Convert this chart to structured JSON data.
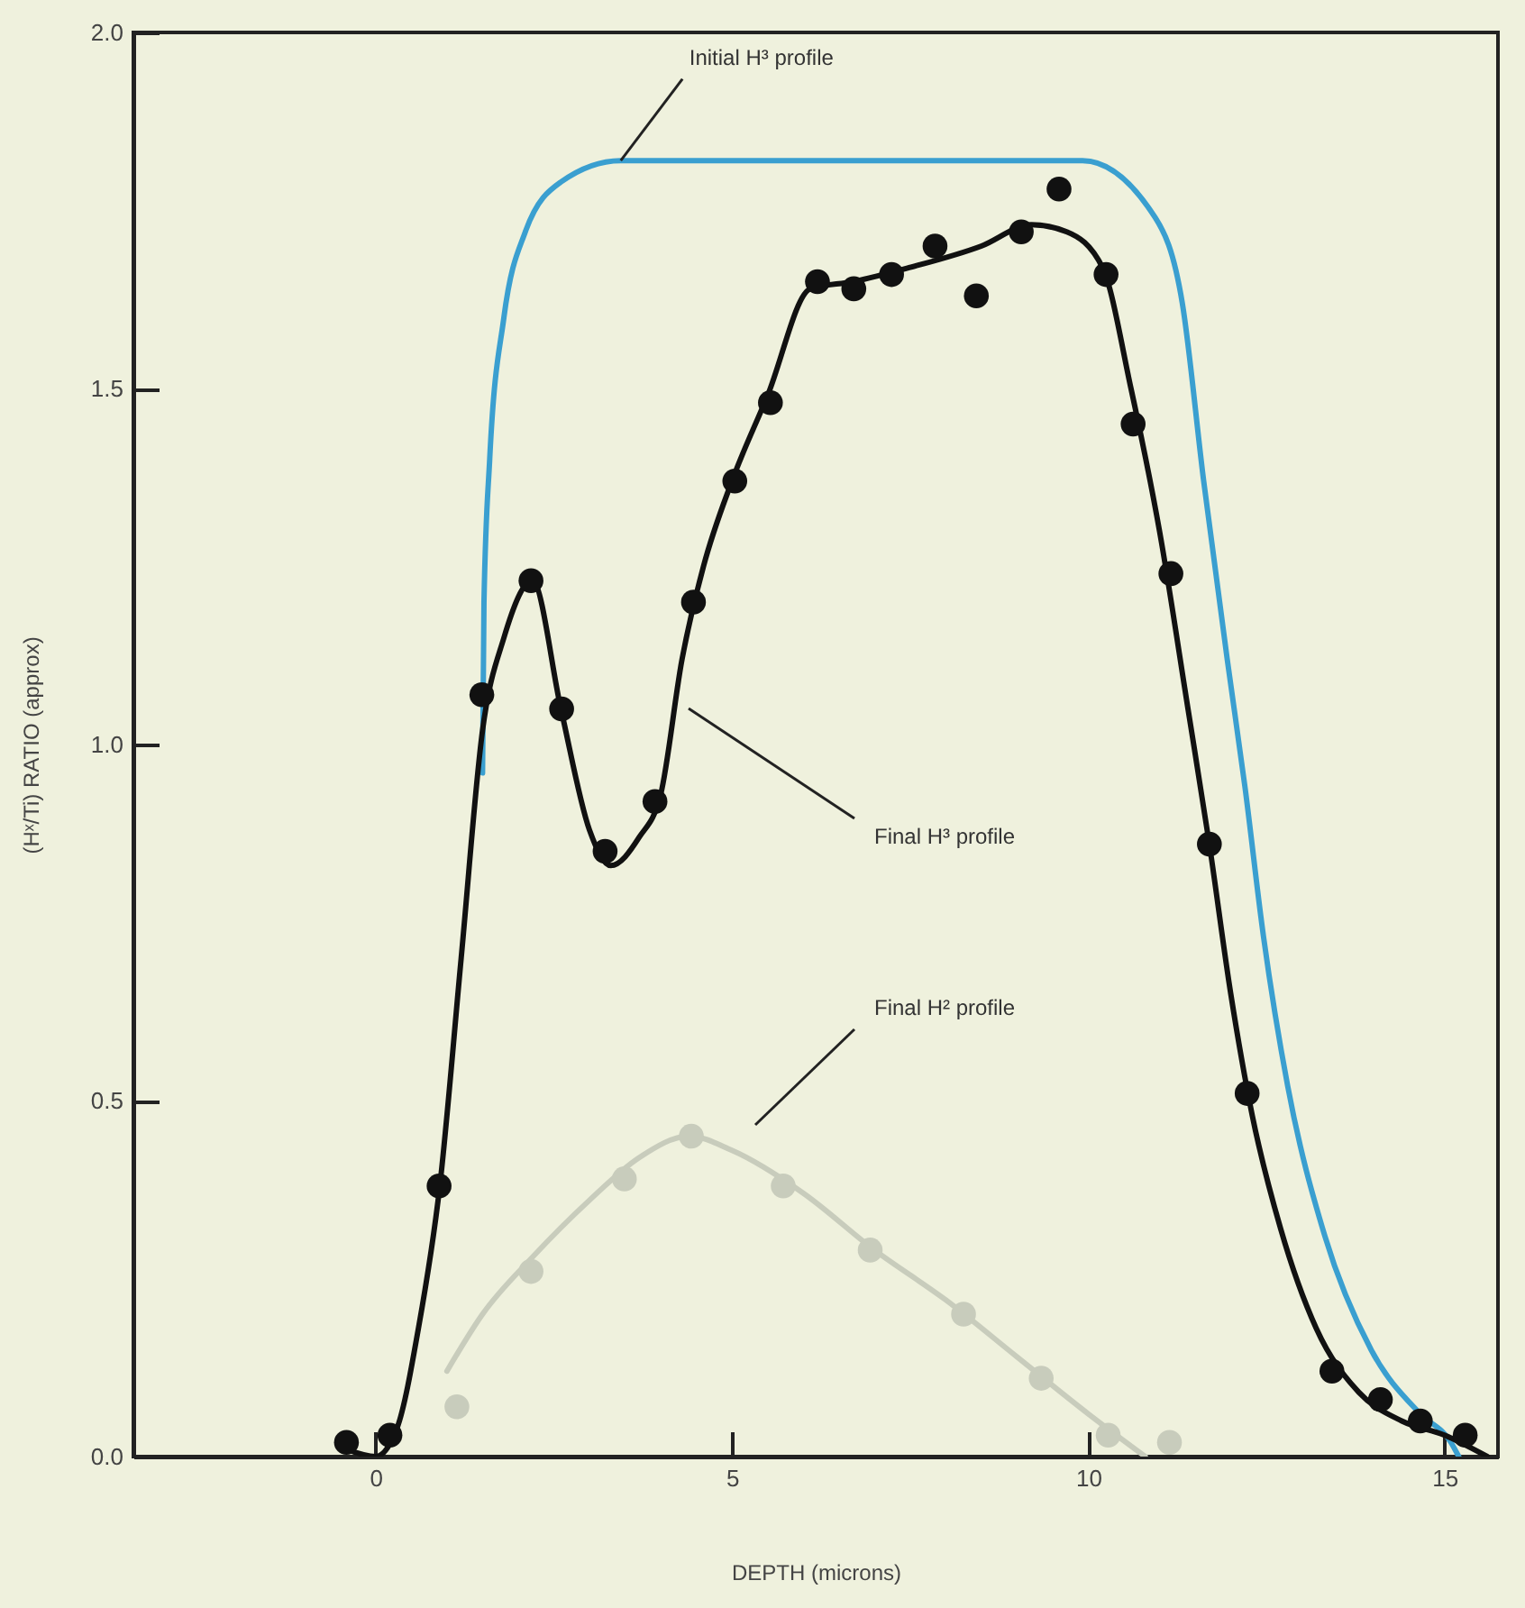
{
  "chart_data": {
    "type": "line",
    "xlabel": "DEPTH (microns)",
    "ylabel": "(Hˣ/Ti) RATIO (approx)",
    "xlim": [
      -3.4,
      15.75
    ],
    "ylim": [
      0,
      2.0
    ],
    "xticks": [
      0,
      5,
      10,
      15
    ],
    "yticks": [
      {
        "value": 0,
        "label": "0.0"
      },
      {
        "value": 0.5,
        "label": "0.5"
      },
      {
        "value": 1,
        "label": "1.0"
      },
      {
        "value": 1.5,
        "label": "1.5"
      },
      {
        "value": 2,
        "label": "2.0"
      }
    ],
    "grid": false,
    "line_style": "solid",
    "annotations": [
      {
        "text": "Initial H³ profile",
        "x": 3.44,
        "y": 1.82
      },
      "Final H³ profile",
      "Final H² profile"
    ],
    "series": [
      {
        "color": "#3a9fd0",
        "x": [
          1.5,
          1.52,
          1.6,
          1.8,
          2.1,
          2.6,
          3.44,
          9.92,
          10.94,
          11.32,
          11.62,
          11.95,
          12.2,
          12.46,
          12.8,
          13.32,
          13.97,
          14.66,
          15.09,
          15.2
        ],
        "values": [
          0.96,
          1.2,
          1.4,
          1.6,
          1.72,
          1.79,
          1.82,
          1.82,
          1.74,
          1.62,
          1.37,
          1.12,
          0.94,
          0.73,
          0.52,
          0.31,
          0.15,
          0.06,
          0.02,
          0.0
        ]
      },
      {
        "color": "#111111",
        "x": [
          -0.4,
          0,
          0.3,
          0.6,
          0.9,
          1.2,
          1.5,
          1.8,
          2.2,
          2.6,
          3.0,
          3.3,
          3.7,
          4.0,
          4.3,
          4.6,
          5.0,
          5.5,
          6.1,
          6.7,
          7.5,
          8.5,
          9.2,
          9.7,
          10.2,
          10.6,
          11.0,
          11.4,
          11.7,
          12.0,
          12.3,
          12.7,
          13.2,
          13.8,
          14.4,
          15.0,
          15.6
        ],
        "values": [
          0.01,
          0,
          0.04,
          0.18,
          0.38,
          0.7,
          1.02,
          1.15,
          1.23,
          1.05,
          0.88,
          0.83,
          0.87,
          0.93,
          1.12,
          1.25,
          1.37,
          1.49,
          1.64,
          1.65,
          1.67,
          1.7,
          1.73,
          1.72,
          1.67,
          1.5,
          1.3,
          1.05,
          0.86,
          0.65,
          0.48,
          0.32,
          0.18,
          0.09,
          0.05,
          0.03,
          0.0
        ]
      },
      {
        "type": "scatter",
        "marker": "circle",
        "color": "#111111",
        "x": [
          -0.41,
          0.2,
          0.89,
          1.49,
          2.18,
          2.61,
          3.22,
          3.92,
          4.46,
          5.04,
          5.54,
          6.2,
          6.71,
          7.24,
          7.85,
          8.43,
          9.06,
          9.59,
          10.25,
          10.63,
          11.16,
          11.7,
          12.23,
          13.42,
          14.1,
          14.66,
          15.29
        ],
        "values": [
          0.02,
          0.03,
          0.38,
          1.07,
          1.23,
          1.05,
          0.85,
          0.92,
          1.2,
          1.37,
          1.48,
          1.65,
          1.64,
          1.66,
          1.7,
          1.63,
          1.72,
          1.78,
          1.66,
          1.45,
          1.24,
          0.86,
          0.51,
          0.12,
          0.08,
          0.05,
          0.03
        ]
      },
      {
        "color": "#c8ccbc",
        "x": [
          1.0,
          1.5,
          2.2,
          3.0,
          3.7,
          4.4,
          5.0,
          6.0,
          7.0,
          8.0,
          9.0,
          10.0,
          10.8
        ],
        "values": [
          0.12,
          0.2,
          0.28,
          0.36,
          0.42,
          0.45,
          0.43,
          0.37,
          0.29,
          0.22,
          0.14,
          0.06,
          0.0
        ]
      },
      {
        "type": "scatter",
        "marker": "circle",
        "color": "#c8ccbc",
        "x": [
          1.14,
          2.18,
          3.49,
          4.43,
          5.72,
          6.94,
          8.25,
          9.34,
          10.28,
          11.14
        ],
        "values": [
          0.07,
          0.26,
          0.39,
          0.45,
          0.38,
          0.29,
          0.2,
          0.11,
          0.03,
          0.02
        ]
      }
    ]
  }
}
